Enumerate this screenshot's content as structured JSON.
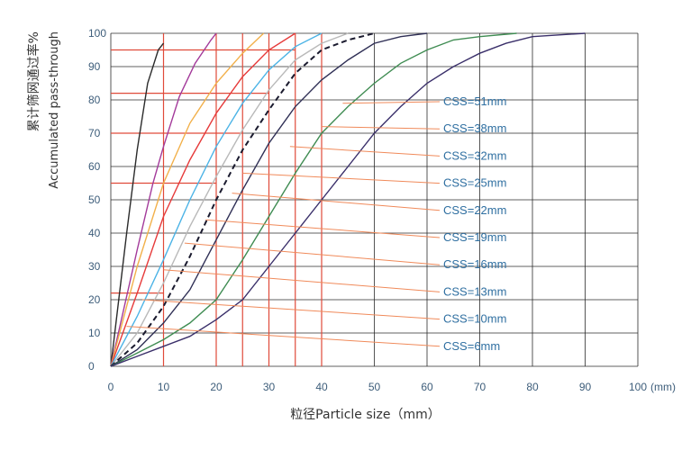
{
  "chart_data": {
    "type": "line",
    "xlabel": "粒径Particle size（mm）",
    "ylabel_cn": "累计筛网通过率%",
    "ylabel_en": "Accumulated pass-through",
    "x_unit_label": "(mm)",
    "x_ticks": [
      0,
      10,
      20,
      30,
      40,
      50,
      60,
      70,
      80,
      90,
      100
    ],
    "y_ticks": [
      0,
      10,
      20,
      30,
      40,
      50,
      60,
      70,
      80,
      90,
      100
    ],
    "xlim": [
      0,
      100
    ],
    "ylim": [
      0,
      100
    ],
    "grid": true,
    "series": [
      {
        "name": "CSS=6mm",
        "color": "#2b2b2b",
        "dash": false,
        "points": [
          [
            0,
            0
          ],
          [
            3,
            40
          ],
          [
            5,
            65
          ],
          [
            7,
            85
          ],
          [
            9,
            95
          ],
          [
            10,
            97
          ]
        ]
      },
      {
        "name": "CSS=10mm",
        "color": "#a33a9a",
        "dash": false,
        "points": [
          [
            0,
            0
          ],
          [
            5,
            35
          ],
          [
            8,
            55
          ],
          [
            10,
            66
          ],
          [
            13,
            81
          ],
          [
            16,
            91
          ],
          [
            19,
            98
          ],
          [
            20,
            100
          ]
        ]
      },
      {
        "name": "CSS=13mm",
        "color": "#f2b04a",
        "dash": false,
        "points": [
          [
            0,
            0
          ],
          [
            5,
            30
          ],
          [
            10,
            55
          ],
          [
            15,
            73
          ],
          [
            20,
            85
          ],
          [
            25,
            94
          ],
          [
            29,
            100
          ]
        ]
      },
      {
        "name": "CSS=16mm",
        "color": "#e63a3a",
        "dash": false,
        "points": [
          [
            0,
            0
          ],
          [
            5,
            22
          ],
          [
            10,
            45
          ],
          [
            15,
            62
          ],
          [
            20,
            76
          ],
          [
            25,
            87
          ],
          [
            30,
            95
          ],
          [
            35,
            100
          ]
        ]
      },
      {
        "name": "CSS=19mm",
        "color": "#4bb3e6",
        "dash": false,
        "points": [
          [
            0,
            0
          ],
          [
            5,
            15
          ],
          [
            10,
            32
          ],
          [
            15,
            50
          ],
          [
            20,
            66
          ],
          [
            25,
            79
          ],
          [
            30,
            89
          ],
          [
            35,
            96
          ],
          [
            40,
            100
          ]
        ]
      },
      {
        "name": "CSS=22mm",
        "color": "#b9b9b9",
        "dash": false,
        "points": [
          [
            0,
            0
          ],
          [
            5,
            10
          ],
          [
            10,
            25
          ],
          [
            15,
            42
          ],
          [
            20,
            57
          ],
          [
            25,
            71
          ],
          [
            30,
            83
          ],
          [
            35,
            92
          ],
          [
            40,
            97
          ],
          [
            45,
            100
          ]
        ]
      },
      {
        "name": "CSS=25mm",
        "color": "#1a1a2e",
        "dash": true,
        "points": [
          [
            0,
            0
          ],
          [
            5,
            7
          ],
          [
            10,
            18
          ],
          [
            15,
            33
          ],
          [
            20,
            50
          ],
          [
            25,
            65
          ],
          [
            30,
            77
          ],
          [
            35,
            88
          ],
          [
            40,
            95
          ],
          [
            45,
            98
          ],
          [
            50,
            100
          ]
        ]
      },
      {
        "name": "CSS=32mm",
        "color": "#2f2f55",
        "dash": false,
        "points": [
          [
            0,
            0
          ],
          [
            5,
            5
          ],
          [
            10,
            13
          ],
          [
            15,
            23
          ],
          [
            20,
            38
          ],
          [
            25,
            53
          ],
          [
            30,
            67
          ],
          [
            35,
            78
          ],
          [
            40,
            86
          ],
          [
            45,
            92
          ],
          [
            50,
            97
          ],
          [
            55,
            99
          ],
          [
            60,
            100
          ]
        ]
      },
      {
        "name": "CSS=38mm",
        "color": "#3f8c52",
        "dash": false,
        "points": [
          [
            0,
            0
          ],
          [
            5,
            4
          ],
          [
            10,
            8
          ],
          [
            15,
            13
          ],
          [
            20,
            20
          ],
          [
            25,
            32
          ],
          [
            30,
            45
          ],
          [
            35,
            58
          ],
          [
            40,
            70
          ],
          [
            45,
            78
          ],
          [
            50,
            85
          ],
          [
            55,
            91
          ],
          [
            60,
            95
          ],
          [
            65,
            98
          ],
          [
            70,
            99
          ],
          [
            77,
            100
          ]
        ]
      },
      {
        "name": "CSS=51mm",
        "color": "#3a2f6a",
        "dash": false,
        "points": [
          [
            0,
            0
          ],
          [
            5,
            3
          ],
          [
            10,
            6
          ],
          [
            15,
            9
          ],
          [
            20,
            14
          ],
          [
            25,
            20
          ],
          [
            30,
            30
          ],
          [
            35,
            40
          ],
          [
            40,
            50
          ],
          [
            45,
            60
          ],
          [
            50,
            70
          ],
          [
            55,
            78
          ],
          [
            60,
            85
          ],
          [
            65,
            90
          ],
          [
            70,
            94
          ],
          [
            75,
            97
          ],
          [
            80,
            99
          ],
          [
            90,
            100
          ]
        ]
      }
    ],
    "reference_lines": [
      {
        "y": 95,
        "x": 35
      },
      {
        "y": 82,
        "x": 30
      },
      {
        "y": 70,
        "x": 25
      },
      {
        "y": 55,
        "x": 20
      },
      {
        "y": 22,
        "x": 10
      }
    ],
    "vertical_marks": [
      10,
      20,
      25,
      30,
      35,
      40
    ],
    "labels_order": [
      "CSS=51mm",
      "CSS=38mm",
      "CSS=32mm",
      "CSS=25mm",
      "CSS=22mm",
      "CSS=19mm",
      "CSS=16mm",
      "CSS=13mm",
      "CSS=10mm",
      "CSS=6mm"
    ],
    "leader_targets": [
      [
        44,
        79
      ],
      [
        40,
        72
      ],
      [
        34,
        66
      ],
      [
        25,
        58
      ],
      [
        23,
        52
      ],
      [
        18,
        44
      ],
      [
        14,
        37
      ],
      [
        10,
        29
      ],
      [
        6,
        20
      ],
      [
        3,
        12
      ]
    ]
  }
}
